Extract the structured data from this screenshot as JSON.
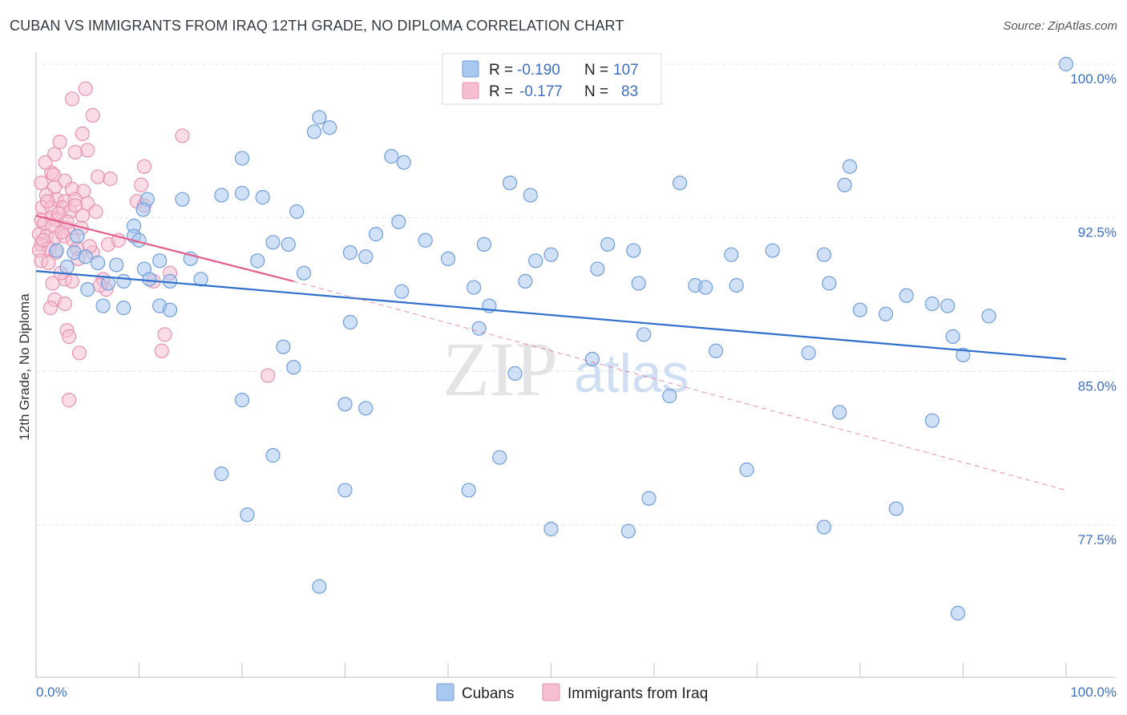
{
  "header": {
    "title": "CUBAN VS IMMIGRANTS FROM IRAQ 12TH GRADE, NO DIPLOMA CORRELATION CHART",
    "source": "Source: ZipAtlas.com"
  },
  "watermark": {
    "zip": "ZIP",
    "atlas": "atlas"
  },
  "stats_legend": [
    {
      "r_label": "R =",
      "r_value": "-0.190",
      "n_label": "N =",
      "n_value": "107",
      "color": "#8fb6ea"
    },
    {
      "r_label": "R =",
      "r_value": "-0.177",
      "n_label": "N =",
      "n_value": "83",
      "color": "#f2a6bf"
    }
  ],
  "colors": {
    "cuban_fill": "#a9c8f0",
    "cuban_stroke": "#6f9ddd",
    "cuban_line": "#2f6fcc",
    "iraq_fill": "#f6bfd1",
    "iraq_stroke": "#e892b0",
    "iraq_line": "#e45f8c",
    "grid": "#e1e3e8",
    "tick_label": "#3e6fc4"
  },
  "chart_data": {
    "type": "scatter",
    "title": "CUBAN VS IMMIGRANTS FROM IRAQ 12TH GRADE, NO DIPLOMA CORRELATION CHART",
    "xlabel": "",
    "ylabel": "12th Grade, No Diploma",
    "xlim": [
      0,
      100
    ],
    "ylim": [
      70.5,
      101.2
    ],
    "x_tick_labels": [
      "0.0%",
      "100.0%"
    ],
    "y_ticks": [
      77.5,
      85.0,
      92.5,
      100.0
    ],
    "y_tick_labels": [
      "77.5%",
      "85.0%",
      "92.5%",
      "100.0%"
    ],
    "grid": true,
    "legend_position": "bottom-center",
    "series": [
      {
        "name": "Cubans",
        "r": -0.19,
        "n": 107,
        "trend": {
          "x": [
            0,
            100
          ],
          "y": [
            89.9,
            85.6
          ]
        },
        "points": [
          [
            100,
            100
          ],
          [
            27.5,
            97.4
          ],
          [
            27.0,
            96.7
          ],
          [
            28.5,
            96.9
          ],
          [
            20,
            95.4
          ],
          [
            34.5,
            95.5
          ],
          [
            35.7,
            95.2
          ],
          [
            62.5,
            94.2
          ],
          [
            46,
            94.2
          ],
          [
            78.5,
            94.1
          ],
          [
            79,
            95.0
          ],
          [
            18,
            93.6
          ],
          [
            20,
            93.7
          ],
          [
            22,
            93.5
          ],
          [
            14.2,
            93.4
          ],
          [
            10.8,
            93.4
          ],
          [
            10.4,
            92.9
          ],
          [
            25.3,
            92.8
          ],
          [
            48,
            93.6
          ],
          [
            35.2,
            92.3
          ],
          [
            9.5,
            92.1
          ],
          [
            33.0,
            91.7
          ],
          [
            37.8,
            91.4
          ],
          [
            4.0,
            91.6
          ],
          [
            9.5,
            91.6
          ],
          [
            10.0,
            91.4
          ],
          [
            23.0,
            91.3
          ],
          [
            24.5,
            91.2
          ],
          [
            43.5,
            91.2
          ],
          [
            55.5,
            91.2
          ],
          [
            50.0,
            90.7
          ],
          [
            58.0,
            90.9
          ],
          [
            2.0,
            90.9
          ],
          [
            3.7,
            90.8
          ],
          [
            4.8,
            90.6
          ],
          [
            6.0,
            90.3
          ],
          [
            7.8,
            90.2
          ],
          [
            12.0,
            90.4
          ],
          [
            15.0,
            90.5
          ],
          [
            21.5,
            90.4
          ],
          [
            30.5,
            90.8
          ],
          [
            32.0,
            90.6
          ],
          [
            40.0,
            90.5
          ],
          [
            48.5,
            90.4
          ],
          [
            54.5,
            90.0
          ],
          [
            67.5,
            90.7
          ],
          [
            71.5,
            90.9
          ],
          [
            76.5,
            90.7
          ],
          [
            10.5,
            90.0
          ],
          [
            3.0,
            90.1
          ],
          [
            5.0,
            89.0
          ],
          [
            7.0,
            89.3
          ],
          [
            8.5,
            89.4
          ],
          [
            11.0,
            89.5
          ],
          [
            13.0,
            89.4
          ],
          [
            16.0,
            89.5
          ],
          [
            26.0,
            89.8
          ],
          [
            35.5,
            88.9
          ],
          [
            42.5,
            89.1
          ],
          [
            47.5,
            89.4
          ],
          [
            64.0,
            89.2
          ],
          [
            58.5,
            89.3
          ],
          [
            65.0,
            89.1
          ],
          [
            68.0,
            89.2
          ],
          [
            77.0,
            89.3
          ],
          [
            84.5,
            88.7
          ],
          [
            87.0,
            88.3
          ],
          [
            88.5,
            88.2
          ],
          [
            80.0,
            88.0
          ],
          [
            82.5,
            87.8
          ],
          [
            92.5,
            87.7
          ],
          [
            6.5,
            88.2
          ],
          [
            8.5,
            88.1
          ],
          [
            12.0,
            88.2
          ],
          [
            13.0,
            88.0
          ],
          [
            44.0,
            88.2
          ],
          [
            30.5,
            87.4
          ],
          [
            43.0,
            87.1
          ],
          [
            59.0,
            86.8
          ],
          [
            24.0,
            86.2
          ],
          [
            66.0,
            86.0
          ],
          [
            75.0,
            85.9
          ],
          [
            89.0,
            86.7
          ],
          [
            90.0,
            85.8
          ],
          [
            54.0,
            85.6
          ],
          [
            25.0,
            85.2
          ],
          [
            46.5,
            84.9
          ],
          [
            61.5,
            83.8
          ],
          [
            20.0,
            83.6
          ],
          [
            30.0,
            83.4
          ],
          [
            32.0,
            83.2
          ],
          [
            78.0,
            83.0
          ],
          [
            87.0,
            82.6
          ],
          [
            23.0,
            80.9
          ],
          [
            45.0,
            80.8
          ],
          [
            69.0,
            80.2
          ],
          [
            18.0,
            80.0
          ],
          [
            42.0,
            79.2
          ],
          [
            30.0,
            79.2
          ],
          [
            59.5,
            78.8
          ],
          [
            83.5,
            78.3
          ],
          [
            20.5,
            78.0
          ],
          [
            50.0,
            77.3
          ],
          [
            57.5,
            77.2
          ],
          [
            76.5,
            77.4
          ],
          [
            27.5,
            74.5
          ],
          [
            89.5,
            73.2
          ]
        ]
      },
      {
        "name": "Immigrants from Iraq",
        "r": -0.177,
        "n": 83,
        "trend": {
          "x": [
            0,
            25
          ],
          "y": [
            92.6,
            89.4
          ]
        },
        "trend_dashed": {
          "x": [
            25,
            100
          ],
          "y": [
            89.4,
            79.2
          ]
        },
        "points": [
          [
            4.8,
            98.8
          ],
          [
            3.5,
            98.3
          ],
          [
            5.5,
            97.5
          ],
          [
            14.2,
            96.5
          ],
          [
            4.5,
            96.6
          ],
          [
            2.3,
            96.2
          ],
          [
            5.0,
            95.8
          ],
          [
            3.8,
            95.7
          ],
          [
            1.8,
            95.6
          ],
          [
            10.5,
            95.0
          ],
          [
            1.5,
            94.7
          ],
          [
            6.0,
            94.5
          ],
          [
            7.2,
            94.4
          ],
          [
            2.8,
            94.3
          ],
          [
            0.5,
            94.2
          ],
          [
            1.8,
            94.0
          ],
          [
            3.5,
            93.9
          ],
          [
            4.6,
            93.8
          ],
          [
            10.2,
            94.1
          ],
          [
            1.0,
            93.6
          ],
          [
            2.0,
            93.4
          ],
          [
            2.8,
            93.3
          ],
          [
            3.8,
            93.4
          ],
          [
            5.0,
            93.2
          ],
          [
            9.8,
            93.3
          ],
          [
            10.5,
            93.1
          ],
          [
            0.6,
            93.0
          ],
          [
            1.5,
            93.0
          ],
          [
            2.6,
            93.0
          ],
          [
            3.3,
            92.8
          ],
          [
            4.5,
            92.6
          ],
          [
            0.5,
            92.4
          ],
          [
            1.5,
            92.5
          ],
          [
            2.0,
            92.4
          ],
          [
            0.8,
            92.2
          ],
          [
            1.6,
            92.1
          ],
          [
            3.0,
            92.0
          ],
          [
            4.4,
            92.0
          ],
          [
            0.3,
            91.7
          ],
          [
            1.0,
            91.6
          ],
          [
            1.8,
            91.5
          ],
          [
            2.7,
            91.6
          ],
          [
            3.6,
            91.4
          ],
          [
            0.5,
            91.2
          ],
          [
            1.3,
            91.0
          ],
          [
            0.3,
            90.9
          ],
          [
            1.9,
            90.8
          ],
          [
            4.0,
            91.0
          ],
          [
            0.5,
            90.4
          ],
          [
            1.2,
            90.3
          ],
          [
            6.5,
            89.5
          ],
          [
            2.8,
            89.5
          ],
          [
            1.6,
            89.3
          ],
          [
            3.5,
            89.4
          ],
          [
            6.8,
            89.0
          ],
          [
            11.4,
            89.4
          ],
          [
            1.8,
            88.5
          ],
          [
            1.4,
            88.1
          ],
          [
            2.8,
            88.3
          ],
          [
            3.0,
            87.0
          ],
          [
            3.2,
            86.7
          ],
          [
            12.5,
            86.8
          ],
          [
            12.2,
            86.0
          ],
          [
            4.2,
            85.9
          ],
          [
            22.5,
            84.8
          ],
          [
            3.2,
            83.6
          ],
          [
            13.0,
            89.8
          ],
          [
            5.5,
            90.8
          ],
          [
            7.0,
            91.2
          ],
          [
            8.0,
            91.4
          ],
          [
            3.8,
            93.1
          ],
          [
            5.2,
            91.1
          ],
          [
            2.2,
            92.7
          ],
          [
            1.1,
            93.3
          ],
          [
            2.5,
            91.8
          ],
          [
            3.0,
            92.3
          ],
          [
            1.7,
            94.6
          ],
          [
            4.1,
            90.5
          ],
          [
            0.9,
            95.2
          ],
          [
            2.4,
            89.8
          ],
          [
            0.7,
            91.4
          ],
          [
            5.8,
            92.8
          ],
          [
            6.2,
            89.2
          ]
        ]
      }
    ]
  }
}
